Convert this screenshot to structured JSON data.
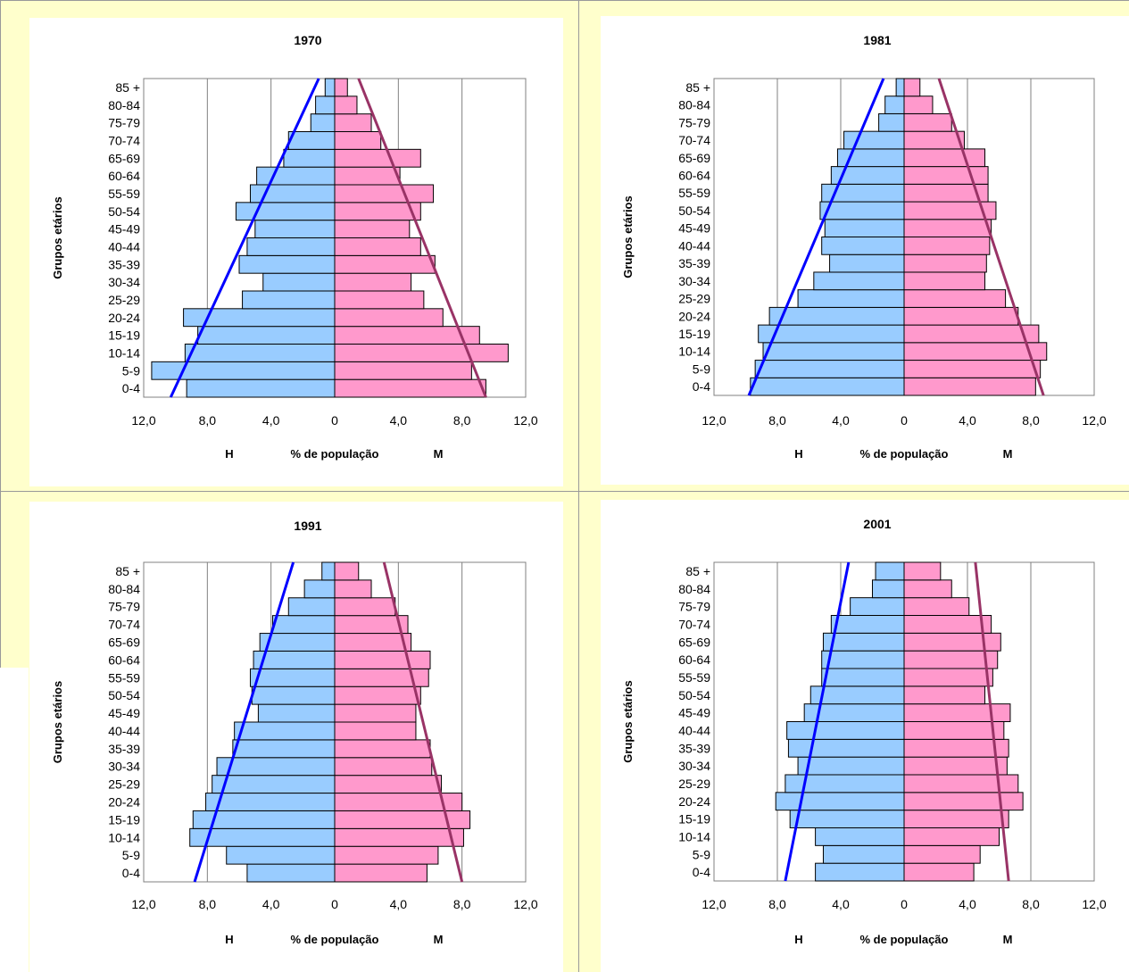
{
  "colors": {
    "men_fill": "#99ccff",
    "women_fill": "#ff99cc",
    "men_trend": "#0000ff",
    "women_trend": "#993366",
    "background": "#ffffcc"
  },
  "chart_data": [
    {
      "type": "bar",
      "orientation": "horizontal-population-pyramid",
      "title": "1970",
      "ylabel": "Grupos etários",
      "xlabel": "% de população",
      "left_label": "H",
      "right_label": "M",
      "categories": [
        "0-4",
        "5-9",
        "10-14",
        "15-19",
        "20-24",
        "25-29",
        "30-34",
        "35-39",
        "40-44",
        "45-49",
        "50-54",
        "55-59",
        "60-64",
        "65-69",
        "70-74",
        "75-79",
        "80-84",
        "85 +"
      ],
      "x_ticks": [
        "12,0",
        "8,0",
        "4,0",
        "0",
        "4,0",
        "8,0",
        "12,0"
      ],
      "xlim": [
        -12,
        12
      ],
      "grid": "vertical",
      "series": [
        {
          "name": "H",
          "values": [
            9.3,
            11.5,
            9.4,
            8.6,
            9.5,
            5.8,
            4.5,
            6.0,
            5.5,
            5.0,
            6.2,
            5.3,
            4.9,
            3.2,
            2.9,
            1.5,
            1.2,
            0.6
          ]
        },
        {
          "name": "M",
          "values": [
            9.5,
            8.6,
            10.9,
            9.1,
            6.8,
            5.6,
            4.8,
            6.3,
            5.4,
            4.7,
            5.4,
            6.2,
            4.1,
            5.4,
            2.9,
            2.3,
            1.4,
            0.8
          ]
        }
      ],
      "trend_men": [
        [
          10.3,
          0
        ],
        [
          1.0,
          17
        ]
      ],
      "trend_women": [
        [
          9.5,
          0
        ],
        [
          1.5,
          17
        ]
      ]
    },
    {
      "type": "bar",
      "orientation": "horizontal-population-pyramid",
      "title": "1981",
      "ylabel": "Grupos etários",
      "xlabel": "% de população",
      "left_label": "H",
      "right_label": "M",
      "categories": [
        "0-4",
        "5-9",
        "10-14",
        "15-19",
        "20-24",
        "25-29",
        "30-34",
        "35-39",
        "40-44",
        "45-49",
        "50-54",
        "55-59",
        "60-64",
        "65-69",
        "70-74",
        "75-79",
        "80-84",
        "85 +"
      ],
      "x_ticks": [
        "12,0",
        "8,0",
        "4,0",
        "0",
        "4,0",
        "8,0",
        "12,0"
      ],
      "xlim": [
        -12,
        12
      ],
      "grid": "vertical",
      "series": [
        {
          "name": "H",
          "values": [
            9.7,
            9.4,
            8.9,
            9.2,
            8.5,
            6.7,
            5.7,
            4.7,
            5.2,
            5.0,
            5.3,
            5.2,
            4.6,
            4.2,
            3.8,
            1.6,
            1.2,
            0.5
          ]
        },
        {
          "name": "M",
          "values": [
            8.3,
            8.6,
            9.0,
            8.5,
            7.2,
            6.4,
            5.1,
            5.2,
            5.4,
            5.5,
            5.8,
            5.3,
            5.3,
            5.1,
            3.8,
            3.0,
            1.8,
            1.0
          ]
        }
      ],
      "trend_men": [
        [
          9.8,
          0
        ],
        [
          1.3,
          17
        ]
      ],
      "trend_women": [
        [
          8.8,
          0
        ],
        [
          2.2,
          17
        ]
      ]
    },
    {
      "type": "bar",
      "orientation": "horizontal-population-pyramid",
      "title": "1991",
      "ylabel": "Grupos etários",
      "xlabel": "% de população",
      "left_label": "H",
      "right_label": "M",
      "categories": [
        "0-4",
        "5-9",
        "10-14",
        "15-19",
        "20-24",
        "25-29",
        "30-34",
        "35-39",
        "40-44",
        "45-49",
        "50-54",
        "55-59",
        "60-64",
        "65-69",
        "70-74",
        "75-79",
        "80-84",
        "85 +"
      ],
      "x_ticks": [
        "12,0",
        "8,0",
        "4,0",
        "0",
        "4,0",
        "8,0",
        "12,0"
      ],
      "xlim": [
        -12,
        12
      ],
      "grid": "vertical",
      "series": [
        {
          "name": "H",
          "values": [
            5.5,
            6.8,
            9.1,
            8.9,
            8.1,
            7.7,
            7.4,
            6.4,
            6.3,
            4.8,
            5.2,
            5.3,
            5.1,
            4.7,
            3.9,
            2.9,
            1.9,
            0.8
          ]
        },
        {
          "name": "M",
          "values": [
            5.8,
            6.5,
            8.1,
            8.5,
            8.0,
            6.7,
            6.1,
            6.0,
            5.1,
            5.1,
            5.4,
            5.9,
            6.0,
            4.8,
            4.6,
            3.8,
            2.3,
            1.5
          ]
        }
      ],
      "trend_men": [
        [
          8.8,
          0
        ],
        [
          2.6,
          17
        ]
      ],
      "trend_women": [
        [
          8.0,
          0
        ],
        [
          3.1,
          17
        ]
      ]
    },
    {
      "type": "bar",
      "orientation": "horizontal-population-pyramid",
      "title": "2001",
      "ylabel": "Grupos etários",
      "xlabel": "% de população",
      "left_label": "H",
      "right_label": "M",
      "categories": [
        "0-4",
        "5-9",
        "10-14",
        "15-19",
        "20-24",
        "25-29",
        "30-34",
        "35-39",
        "40-44",
        "45-49",
        "50-54",
        "55-59",
        "60-64",
        "65-69",
        "70-74",
        "75-79",
        "80-84",
        "85 +"
      ],
      "x_ticks": [
        "12,0",
        "8,0",
        "4,0",
        "0",
        "4,0",
        "8,0",
        "12,0"
      ],
      "xlim": [
        -12,
        12
      ],
      "grid": "vertical",
      "series": [
        {
          "name": "H",
          "values": [
            5.6,
            5.1,
            5.6,
            7.2,
            8.1,
            7.5,
            6.7,
            7.3,
            7.4,
            6.3,
            5.9,
            5.2,
            5.2,
            5.1,
            4.6,
            3.4,
            2.0,
            1.8
          ]
        },
        {
          "name": "M",
          "values": [
            4.4,
            4.8,
            6.0,
            6.6,
            7.5,
            7.2,
            6.5,
            6.6,
            6.3,
            6.7,
            5.1,
            5.6,
            5.9,
            6.1,
            5.5,
            4.1,
            3.0,
            2.3
          ]
        }
      ],
      "trend_men": [
        [
          7.5,
          0
        ],
        [
          3.5,
          17
        ]
      ],
      "trend_women": [
        [
          6.6,
          0
        ],
        [
          4.5,
          17
        ]
      ]
    }
  ]
}
